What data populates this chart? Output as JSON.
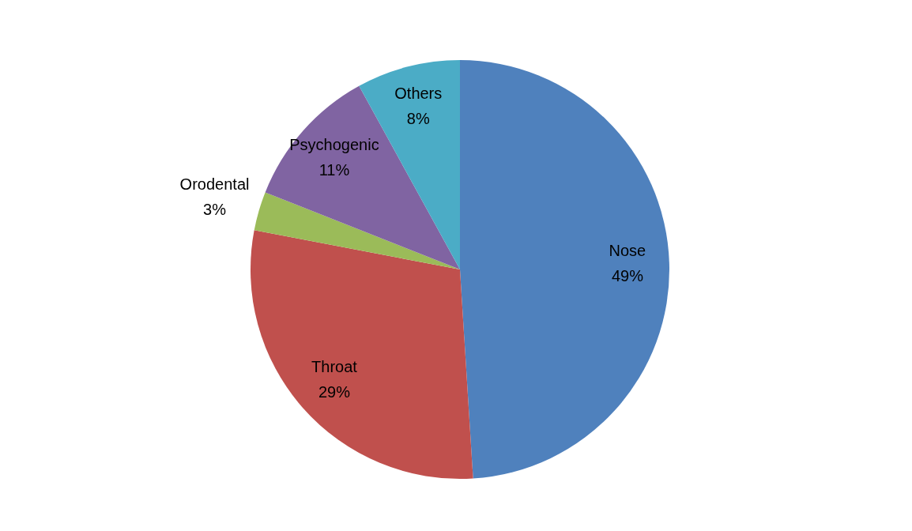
{
  "chart_data": {
    "type": "pie",
    "categories": [
      "Nose",
      "Throat",
      "Orodental",
      "Psychogenic",
      "Others"
    ],
    "values": [
      49,
      29,
      3,
      11,
      8
    ],
    "value_labels": [
      "49%",
      "29%",
      "3%",
      "11%",
      "8%"
    ],
    "colors": [
      "#4f81bd",
      "#c0504d",
      "#9bbb59",
      "#8064a2",
      "#4bacc6"
    ]
  }
}
